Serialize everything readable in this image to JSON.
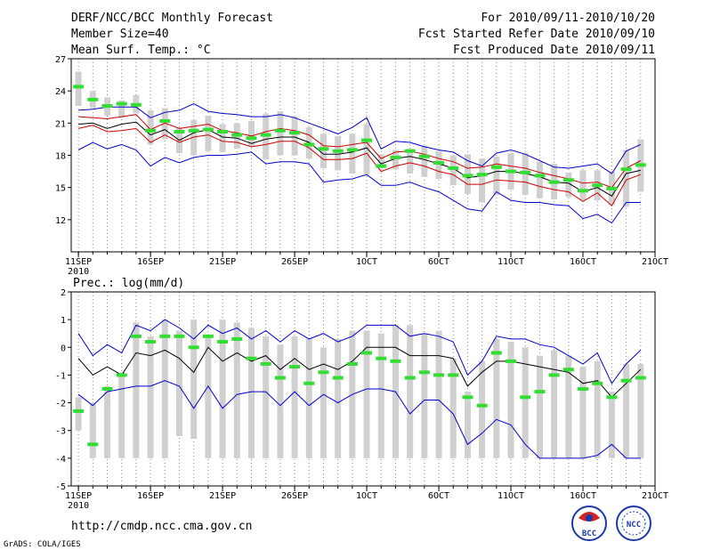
{
  "header": {
    "title": "DERF/NCC/BCC Monthly Forecast",
    "member_size": "Member Size=40",
    "variable": "Mean Surf. Temp.: °C",
    "period": "For 2010/09/11-2010/10/20",
    "start_date": "Fcst Started Refer Date 2010/09/10",
    "produced_date": "Fcst Produced Date 2010/09/11"
  },
  "footer": {
    "url": "http://cmdp.ncc.cma.gov.cn",
    "credit": "GrADS: COLA/IGES",
    "logo1": "BCC",
    "logo2": "NCC"
  },
  "colors": {
    "box": "#d0d0d0",
    "median": "#33dd33",
    "mean": "#000000",
    "spread": "#cc0000",
    "range": "#0000cc"
  },
  "chart_data": [
    {
      "type": "line",
      "title": "Mean Surf. Temp.: °C",
      "xlabel": "",
      "ylabel": "°C",
      "days": [
        1,
        2,
        3,
        4,
        5,
        6,
        7,
        8,
        9,
        10,
        11,
        12,
        13,
        14,
        15,
        16,
        17,
        18,
        19,
        20,
        21,
        22,
        23,
        24,
        25,
        26,
        27,
        28,
        29,
        30,
        31,
        32,
        33,
        34,
        35,
        36,
        37,
        38,
        39,
        40
      ],
      "xticks": [
        {
          "day": 1,
          "label": "11SEP",
          "sub": "2010"
        },
        {
          "day": 6,
          "label": "16SEP"
        },
        {
          "day": 11,
          "label": "21SEP"
        },
        {
          "day": 16,
          "label": "26SEP"
        },
        {
          "day": 21,
          "label": "1OCT"
        },
        {
          "day": 26,
          "label": "6OCT"
        },
        {
          "day": 31,
          "label": "11OCT"
        },
        {
          "day": 36,
          "label": "16OCT"
        },
        {
          "day": 41,
          "label": "21OCT"
        }
      ],
      "xlim": [
        0.5,
        41
      ],
      "ylim": [
        9,
        27
      ],
      "yticks": [
        12,
        15,
        18,
        21,
        24,
        27
      ],
      "series": [
        {
          "name": "box_low",
          "values": [
            22.6,
            22.4,
            21.7,
            21.5,
            21.9,
            19.0,
            19.5,
            18.2,
            18.0,
            18.4,
            18.3,
            18.6,
            18.8,
            17.6,
            18.0,
            18.0,
            17.7,
            16.8,
            16.6,
            16.3,
            16.2,
            16.8,
            16.7,
            16.3,
            16.0,
            15.8,
            15.2,
            14.4,
            13.6,
            14.3,
            14.8,
            14.3,
            14.0,
            13.9,
            14.1,
            13.8,
            13.8,
            13.4,
            13.2,
            14.6
          ]
        },
        {
          "name": "box_high",
          "values": [
            25.8,
            24.0,
            23.4,
            23.1,
            23.6,
            22.2,
            22.4,
            20.6,
            21.3,
            21.7,
            20.9,
            21.0,
            21.2,
            21.9,
            22.1,
            21.6,
            20.6,
            20.0,
            19.8,
            20.0,
            20.9,
            18.1,
            18.5,
            18.6,
            18.9,
            18.4,
            18.0,
            18.1,
            17.7,
            17.9,
            18.2,
            18.2,
            17.4,
            17.2,
            16.4,
            16.6,
            16.6,
            16.5,
            18.5,
            19.5
          ]
        },
        {
          "name": "median",
          "values": [
            24.4,
            23.2,
            22.6,
            22.8,
            22.7,
            20.3,
            21.2,
            20.2,
            20.3,
            20.4,
            20.2,
            19.9,
            19.6,
            19.9,
            20.3,
            20.1,
            19.0,
            18.6,
            18.4,
            18.5,
            19.4,
            17.0,
            17.8,
            18.4,
            17.9,
            17.3,
            16.8,
            16.1,
            16.2,
            16.9,
            16.5,
            16.4,
            16.1,
            15.5,
            15.7,
            14.7,
            15.2,
            14.9,
            16.7,
            17.1
          ]
        },
        {
          "name": "mean",
          "values": [
            20.9,
            21.0,
            20.5,
            20.9,
            21.1,
            19.9,
            20.4,
            19.4,
            20.1,
            20.4,
            19.7,
            19.6,
            19.1,
            19.5,
            19.7,
            19.7,
            19.2,
            18.1,
            18.1,
            18.3,
            18.7,
            17.2,
            17.7,
            17.9,
            17.6,
            17.2,
            16.8,
            15.9,
            16.1,
            16.5,
            16.5,
            16.3,
            16.0,
            15.5,
            15.4,
            14.6,
            15.0,
            14.2,
            16.3,
            16.6
          ]
        },
        {
          "name": "mean_plus_sd",
          "values": [
            21.6,
            21.5,
            21.4,
            21.6,
            21.8,
            20.4,
            21.0,
            20.5,
            20.7,
            20.9,
            20.3,
            20.1,
            19.8,
            20.2,
            20.5,
            20.3,
            19.9,
            18.9,
            18.8,
            19.0,
            19.2,
            17.7,
            18.3,
            18.4,
            18.1,
            17.7,
            17.4,
            16.8,
            16.9,
            17.2,
            17.0,
            16.8,
            16.4,
            16.1,
            15.8,
            15.4,
            15.5,
            15.0,
            16.8,
            17.5
          ]
        },
        {
          "name": "mean_minus_sd",
          "values": [
            20.5,
            20.8,
            20.2,
            20.3,
            20.5,
            19.2,
            19.9,
            19.2,
            19.7,
            19.9,
            19.3,
            19.2,
            18.8,
            19.0,
            19.3,
            19.3,
            18.7,
            17.6,
            17.6,
            17.7,
            18.2,
            16.5,
            17.0,
            17.3,
            17.0,
            16.5,
            16.2,
            15.3,
            15.3,
            15.7,
            15.6,
            15.5,
            15.1,
            14.8,
            14.6,
            13.7,
            14.5,
            13.3,
            15.7,
            16.2
          ]
        },
        {
          "name": "max",
          "values": [
            22.2,
            22.3,
            22.5,
            22.5,
            22.5,
            21.5,
            22.0,
            22.2,
            22.8,
            22.1,
            21.9,
            21.8,
            21.6,
            21.6,
            21.8,
            21.5,
            21.0,
            20.5,
            20.0,
            20.6,
            21.5,
            18.6,
            19.3,
            19.2,
            18.8,
            18.5,
            18.3,
            17.5,
            17.0,
            18.2,
            18.5,
            18.1,
            17.5,
            16.9,
            16.8,
            17.0,
            17.2,
            16.3,
            18.4,
            19.0
          ]
        },
        {
          "name": "min",
          "values": [
            18.5,
            19.2,
            18.6,
            19.0,
            18.5,
            17.0,
            17.8,
            17.3,
            17.8,
            18.0,
            18.0,
            18.1,
            18.3,
            17.2,
            17.4,
            17.4,
            17.2,
            15.5,
            15.7,
            15.8,
            16.2,
            15.2,
            15.2,
            15.5,
            15.0,
            14.6,
            13.8,
            13.0,
            12.8,
            14.6,
            13.8,
            13.6,
            13.6,
            13.4,
            13.3,
            12.1,
            12.5,
            11.7,
            13.6,
            13.6
          ]
        }
      ]
    },
    {
      "type": "line",
      "title": "Prec.: log(mm/d)",
      "xlabel": "",
      "ylabel": "log(mm/d)",
      "days": [
        1,
        2,
        3,
        4,
        5,
        6,
        7,
        8,
        9,
        10,
        11,
        12,
        13,
        14,
        15,
        16,
        17,
        18,
        19,
        20,
        21,
        22,
        23,
        24,
        25,
        26,
        27,
        28,
        29,
        30,
        31,
        32,
        33,
        34,
        35,
        36,
        37,
        38,
        39,
        40
      ],
      "xticks": [
        {
          "day": 1,
          "label": "11SEP",
          "sub": "2010"
        },
        {
          "day": 6,
          "label": "16SEP"
        },
        {
          "day": 11,
          "label": "21SEP"
        },
        {
          "day": 16,
          "label": "26SEP"
        },
        {
          "day": 21,
          "label": "1OCT"
        },
        {
          "day": 26,
          "label": "6OCT"
        },
        {
          "day": 31,
          "label": "11OCT"
        },
        {
          "day": 36,
          "label": "16OCT"
        },
        {
          "day": 41,
          "label": "21OCT"
        }
      ],
      "xlim": [
        0.5,
        41
      ],
      "ylim": [
        -5,
        2
      ],
      "yticks": [
        -5,
        -4,
        -3,
        -2,
        -1,
        0,
        1,
        2
      ],
      "series": [
        {
          "name": "box_low",
          "values": [
            -3.0,
            -4.0,
            -4.0,
            -4.0,
            -4.0,
            -4.0,
            -4.0,
            -3.2,
            -3.3,
            -4.0,
            -4.0,
            -4.0,
            -4.0,
            -4.0,
            -4.0,
            -4.0,
            -4.0,
            -4.0,
            -4.0,
            -4.0,
            -4.0,
            -4.0,
            -4.0,
            -4.0,
            -4.0,
            -4.0,
            -4.0,
            -4.0,
            -4.0,
            -4.0,
            -4.0,
            -4.0,
            -4.0,
            -4.0,
            -4.0,
            -4.0,
            -4.0,
            -4.0,
            -4.0,
            -4.0
          ]
        },
        {
          "name": "box_high",
          "values": [
            -1.8,
            -2.0,
            -1.4,
            -0.9,
            0.9,
            0.4,
            1.0,
            0.6,
            1.0,
            0.4,
            1.0,
            0.9,
            0.7,
            0.4,
            0.1,
            0.4,
            0.3,
            0.0,
            0.3,
            0.6,
            0.6,
            0.5,
            0.8,
            0.8,
            0.5,
            0.6,
            -0.4,
            -1.6,
            -0.5,
            0.3,
            0.2,
            0.0,
            -0.3,
            -0.1,
            -0.3,
            -0.7,
            -0.5,
            -1.6,
            -0.6,
            -0.6
          ]
        },
        {
          "name": "median",
          "values": [
            -2.3,
            -3.5,
            -1.5,
            -1.0,
            0.4,
            0.2,
            0.4,
            0.4,
            0.0,
            0.4,
            0.2,
            0.3,
            -0.4,
            -0.6,
            -1.1,
            -0.7,
            -1.3,
            -0.9,
            -1.1,
            -0.6,
            -0.2,
            -0.4,
            -0.5,
            -1.1,
            -0.9,
            -1.0,
            -1.0,
            -1.8,
            -2.1,
            -0.2,
            -0.5,
            -1.8,
            -1.6,
            -1.0,
            -0.8,
            -1.5,
            -1.3,
            -1.8,
            -1.2,
            -1.1
          ]
        },
        {
          "name": "mean",
          "values": [
            -0.4,
            -1.0,
            -0.7,
            -1.0,
            -0.2,
            -0.3,
            -0.1,
            -0.4,
            -0.9,
            0.0,
            -0.5,
            -0.2,
            -0.5,
            -0.3,
            -0.8,
            -0.4,
            -0.8,
            -0.6,
            -0.8,
            -0.5,
            0.0,
            0.0,
            0.0,
            -0.3,
            -0.3,
            -0.3,
            -0.4,
            -1.4,
            -0.9,
            -0.5,
            -0.5,
            -0.6,
            -0.7,
            -0.8,
            -0.9,
            -1.3,
            -1.2,
            -1.8,
            -1.3,
            -0.8
          ]
        },
        {
          "name": "min",
          "values": [
            -1.7,
            -2.1,
            -1.6,
            -1.5,
            -1.4,
            -1.4,
            -1.2,
            -1.4,
            -2.2,
            -1.4,
            -2.2,
            -1.7,
            -1.6,
            -1.6,
            -2.1,
            -1.6,
            -2.1,
            -1.7,
            -2.0,
            -1.7,
            -1.5,
            -1.5,
            -1.6,
            -2.4,
            -1.9,
            -1.9,
            -2.4,
            -3.5,
            -3.1,
            -2.6,
            -2.8,
            -3.5,
            -4.0,
            -4.0,
            -4.0,
            -4.0,
            -3.9,
            -3.5,
            -4.0,
            -4.0
          ]
        },
        {
          "name": "max",
          "values": [
            0.5,
            -0.3,
            0.1,
            -0.2,
            0.8,
            0.6,
            1.0,
            0.7,
            0.3,
            0.8,
            0.5,
            0.7,
            0.3,
            0.6,
            0.2,
            0.6,
            0.3,
            0.5,
            0.2,
            0.4,
            0.8,
            0.8,
            0.8,
            0.4,
            0.5,
            0.4,
            0.2,
            -1.0,
            -0.5,
            0.4,
            0.3,
            0.3,
            0.1,
            0.0,
            -0.3,
            -0.6,
            -0.2,
            -1.3,
            -0.6,
            -0.1
          ]
        }
      ]
    }
  ]
}
